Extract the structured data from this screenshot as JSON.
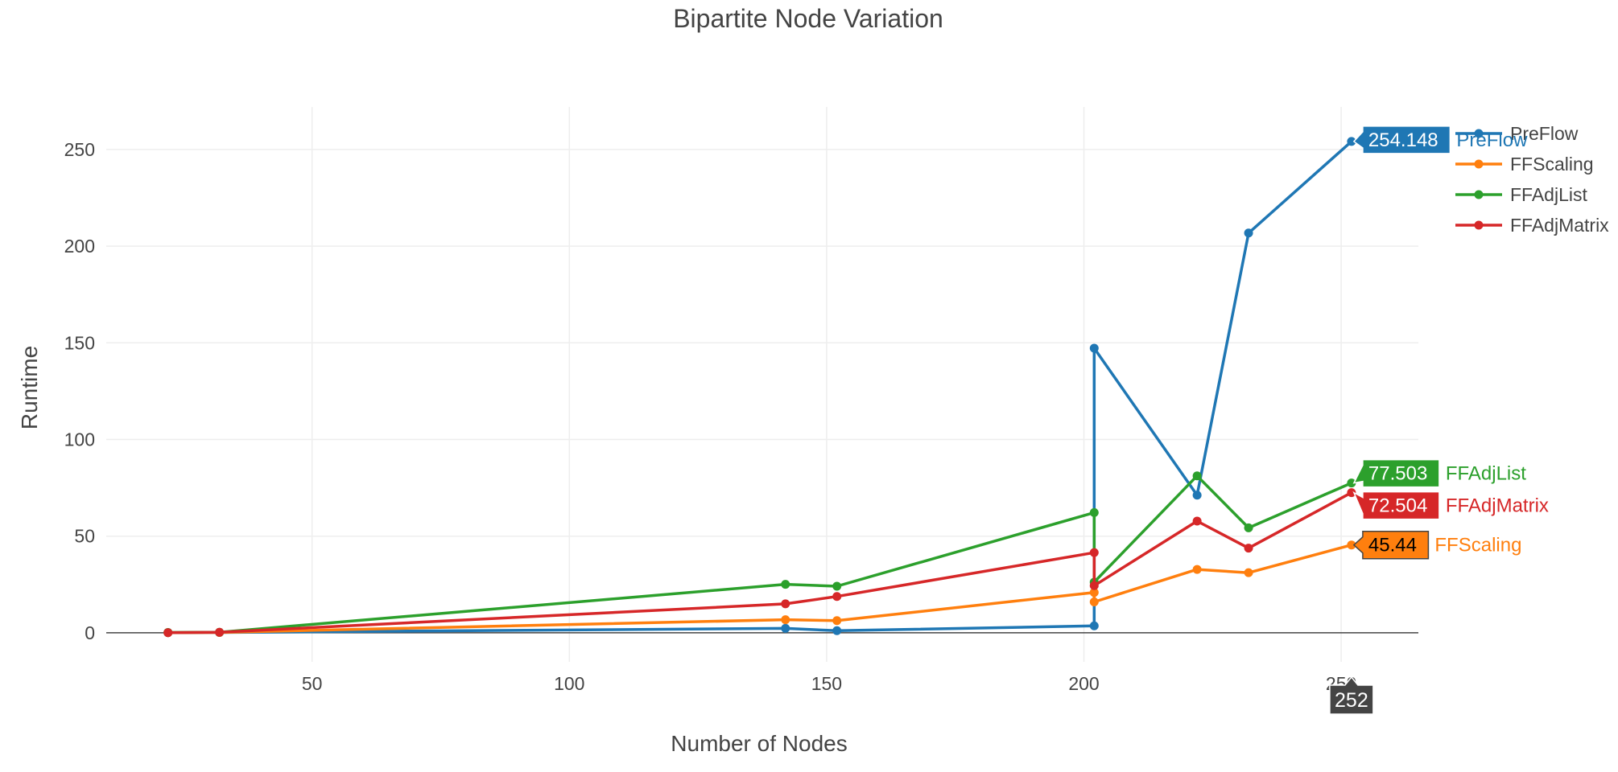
{
  "chart_data": {
    "type": "line",
    "title": "Bipartite Node Variation",
    "xlabel": "Number of Nodes",
    "ylabel": "Runtime",
    "xlim": [
      10,
      265
    ],
    "ylim": [
      -15,
      272
    ],
    "xticks": [
      50,
      100,
      150,
      200,
      250
    ],
    "yticks": [
      0,
      50,
      100,
      150,
      200,
      250
    ],
    "grid": true,
    "legend_position": "top-right",
    "series": [
      {
        "name": "PreFlow",
        "color": "#1f77b4",
        "x": [
          22,
          32,
          142,
          152,
          202,
          202,
          222,
          232,
          252
        ],
        "y": [
          0.1,
          0.2,
          2.3,
          1.1,
          3.6,
          147.2,
          71.2,
          206.8,
          254.148
        ]
      },
      {
        "name": "FFScaling",
        "color": "#ff7f0e",
        "x": [
          22,
          32,
          142,
          152,
          202,
          202,
          222,
          232,
          252
        ],
        "y": [
          0.1,
          0.2,
          6.8,
          6.3,
          20.9,
          16.0,
          32.8,
          31.1,
          45.44
        ]
      },
      {
        "name": "FFAdjList",
        "color": "#2ca02c",
        "x": [
          22,
          32,
          142,
          152,
          202,
          202,
          222,
          232,
          252
        ],
        "y": [
          0.2,
          0.3,
          25.1,
          24.1,
          62.2,
          26.2,
          81.2,
          54.3,
          77.503
        ]
      },
      {
        "name": "FFAdjMatrix",
        "color": "#d62728",
        "x": [
          22,
          32,
          142,
          152,
          202,
          202,
          222,
          232,
          252
        ],
        "y": [
          0.1,
          0.3,
          15.0,
          18.8,
          41.5,
          24.4,
          57.8,
          43.8,
          72.504
        ]
      }
    ],
    "hover": {
      "x_label": "252",
      "labels": [
        {
          "series": "PreFlow",
          "value": "254.148",
          "name": "PreFlow",
          "color": "#1f77b4",
          "text_color": "#ffffff"
        },
        {
          "series": "FFAdjList",
          "value": "77.503",
          "name": "FFAdjList",
          "color": "#2ca02c",
          "text_color": "#ffffff"
        },
        {
          "series": "FFAdjMatrix",
          "value": "72.504",
          "name": "FFAdjMatrix",
          "color": "#d62728",
          "text_color": "#ffffff"
        },
        {
          "series": "FFScaling",
          "value": "45.44",
          "name": "FFScaling",
          "color": "#ff7f0e",
          "text_color": "#000000"
        }
      ]
    }
  }
}
